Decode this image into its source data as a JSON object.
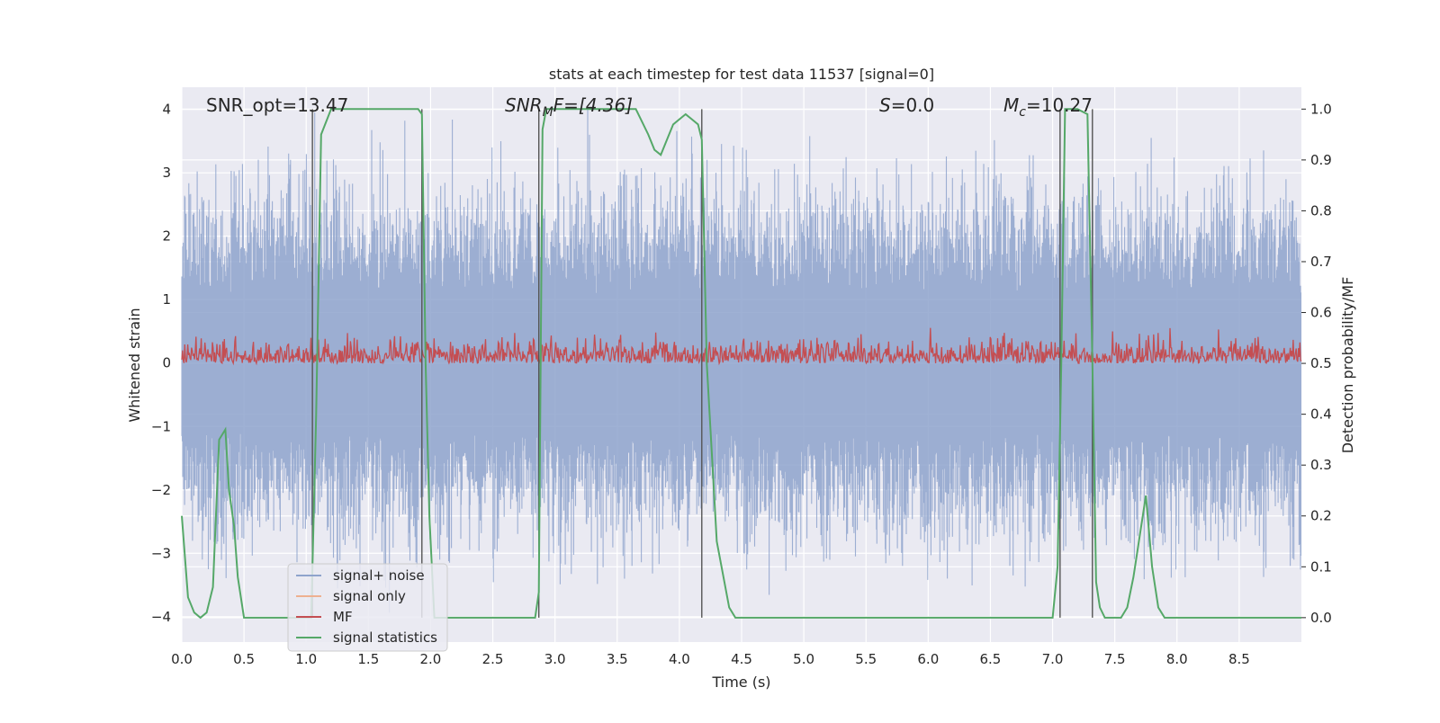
{
  "chart_data": {
    "type": "line",
    "title": "stats at each timestep for test data 11537 [signal=0]",
    "xlabel": "Time (s)",
    "ylabel_left": "Whitened strain",
    "ylabel_right": "Detection probability/MF",
    "xlim": [
      0.0,
      9.0
    ],
    "ylim_left": [
      -4.4,
      4.35
    ],
    "ylim_right": [
      -0.048,
      1.043
    ],
    "xticks": [
      0.0,
      0.5,
      1.0,
      1.5,
      2.0,
      2.5,
      3.0,
      3.5,
      4.0,
      4.5,
      5.0,
      5.5,
      6.0,
      6.5,
      7.0,
      7.5,
      8.0,
      8.5
    ],
    "xtick_labels": [
      "0.0",
      "0.5",
      "1.0",
      "1.5",
      "2.0",
      "2.5",
      "3.0",
      "3.5",
      "4.0",
      "4.5",
      "5.0",
      "5.5",
      "6.0",
      "6.5",
      "7.0",
      "7.5",
      "8.0",
      "8.5"
    ],
    "yticks_left": [
      -4,
      -3,
      -2,
      -1,
      0,
      1,
      2,
      3,
      4
    ],
    "ytick_labels_left": [
      "−4",
      "−3",
      "−2",
      "−1",
      "0",
      "1",
      "2",
      "3",
      "4"
    ],
    "yticks_right": [
      0.0,
      0.1,
      0.2,
      0.3,
      0.4,
      0.5,
      0.6,
      0.7,
      0.8,
      0.9,
      1.0
    ],
    "ytick_labels_right": [
      "0.0",
      "0.1",
      "0.2",
      "0.3",
      "0.4",
      "0.5",
      "0.6",
      "0.7",
      "0.8",
      "0.9",
      "1.0"
    ],
    "grid": true,
    "legend_position": "lower-left",
    "legend": [
      {
        "label": "signal+ noise",
        "color": "#8ea3cc"
      },
      {
        "label": "signal only",
        "color": "#eeb090"
      },
      {
        "label": "MF",
        "color": "#c44e52"
      },
      {
        "label": "signal statistics",
        "color": "#55a868"
      }
    ],
    "annotations": {
      "snr_opt": {
        "text": "SNR_opt=13.47",
        "x": 0.2,
        "y": 4.0
      },
      "snr_mf": {
        "main": "SNR",
        "sub": "M",
        "rest": "F=[4.36]",
        "x": 2.6,
        "y": 4.0
      },
      "s": {
        "main": "S",
        "rest": "=0.0",
        "x": 5.63,
        "y": 4.0
      },
      "mc": {
        "main": "M",
        "sub": "c",
        "rest": "=10.27",
        "x": 6.63,
        "y": 4.0
      }
    },
    "vertical_lines_x": [
      1.05,
      1.93,
      2.87,
      4.18,
      7.06,
      7.32
    ],
    "series": [
      {
        "name": "signal+ noise",
        "color": "#8ea3cc",
        "axis": "left",
        "description": "whitened strain samples, noise fluctuating roughly between -4 and 4, envelope mostly within +/-3",
        "envelope_upper": 3.0,
        "envelope_lower": -3.0
      },
      {
        "name": "MF",
        "color": "#c44e52",
        "axis": "right",
        "baseline": 0.5,
        "range": [
          0.5,
          0.59
        ]
      },
      {
        "name": "signal statistics",
        "color": "#55a868",
        "axis": "right",
        "x": [
          0.0,
          0.05,
          0.1,
          0.15,
          0.2,
          0.25,
          0.3,
          0.35,
          0.38,
          0.42,
          0.45,
          0.5,
          0.55,
          0.7,
          0.9,
          1.0,
          1.04,
          1.08,
          1.12,
          1.2,
          1.9,
          1.93,
          1.96,
          1.99,
          2.03,
          2.1,
          2.3,
          2.6,
          2.84,
          2.87,
          2.9,
          2.93,
          3.0,
          3.5,
          3.65,
          3.75,
          3.8,
          3.85,
          3.9,
          3.95,
          4.0,
          4.05,
          4.1,
          4.15,
          4.18,
          4.22,
          4.3,
          4.4,
          4.45,
          4.5,
          5.0,
          6.0,
          7.0,
          7.04,
          7.07,
          7.1,
          7.13,
          7.2,
          7.28,
          7.32,
          7.35,
          7.38,
          7.42,
          7.47,
          7.55,
          7.6,
          7.65,
          7.7,
          7.75,
          7.8,
          7.85,
          7.9,
          7.95,
          8.0,
          8.5,
          9.0
        ],
        "values": [
          0.2,
          0.04,
          0.01,
          0.0,
          0.01,
          0.06,
          0.35,
          0.37,
          0.25,
          0.18,
          0.08,
          0.0,
          0.0,
          0.0,
          0.0,
          0.0,
          0.0,
          0.4,
          0.95,
          1.0,
          1.0,
          0.99,
          0.5,
          0.2,
          0.0,
          0.0,
          0.0,
          0.0,
          0.0,
          0.05,
          0.96,
          1.0,
          1.0,
          1.0,
          1.0,
          0.95,
          0.92,
          0.91,
          0.94,
          0.97,
          0.98,
          0.99,
          0.98,
          0.97,
          0.94,
          0.5,
          0.15,
          0.02,
          0.0,
          0.0,
          0.0,
          0.0,
          0.0,
          0.1,
          0.5,
          1.0,
          1.0,
          1.0,
          0.99,
          0.5,
          0.07,
          0.02,
          0.0,
          0.0,
          0.0,
          0.02,
          0.08,
          0.16,
          0.24,
          0.1,
          0.02,
          0.0,
          0.0,
          0.0,
          0.0,
          0.0
        ]
      }
    ]
  }
}
